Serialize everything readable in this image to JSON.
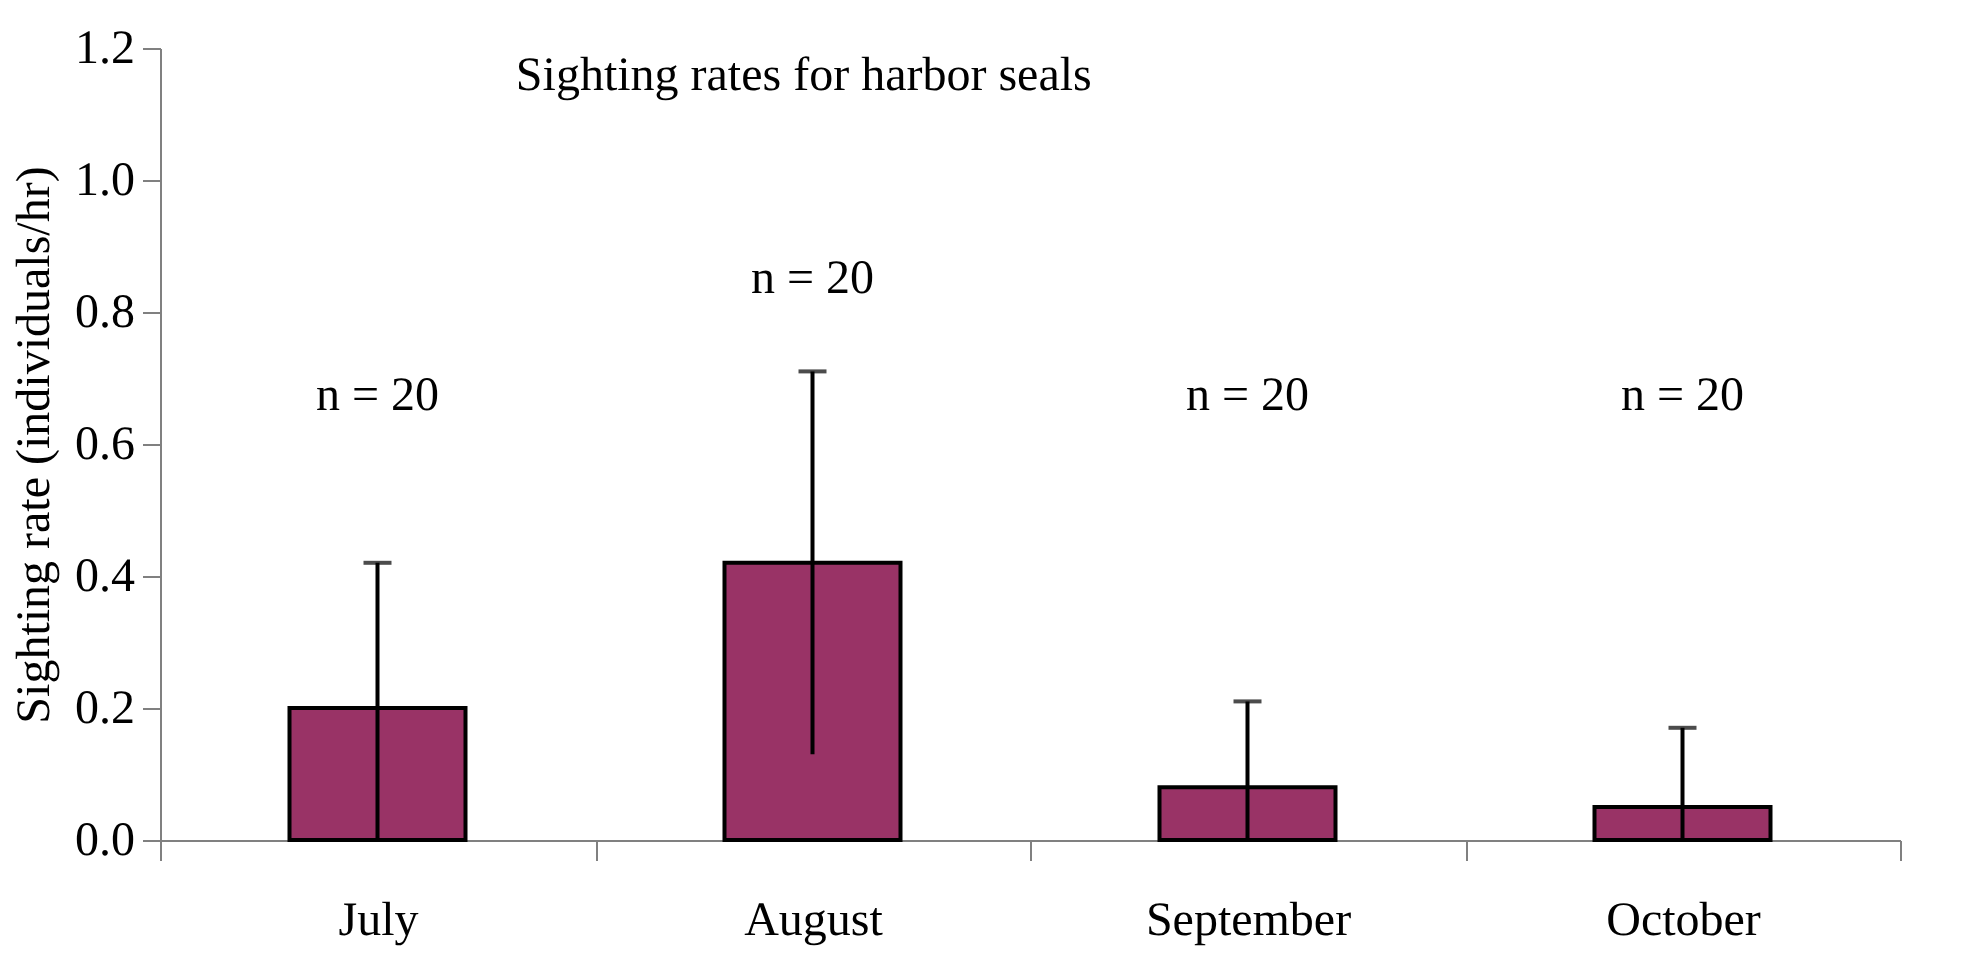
{
  "chart_data": {
    "type": "bar",
    "title": "Sighting rates for harbor seals",
    "ylabel": "Sighting rate (individuals/hr)",
    "categories": [
      "July",
      "August",
      "September",
      "October"
    ],
    "values": [
      0.2,
      0.42,
      0.08,
      0.05
    ],
    "color": "#993366",
    "errors": [
      [
        0,
        0.42
      ],
      [
        0.13,
        0.71
      ],
      [
        0,
        0.21
      ],
      [
        0,
        0.17
      ]
    ],
    "ylim": [
      0,
      1.2
    ],
    "yticks": [
      {
        "value": 0,
        "label": "0.0"
      },
      0.2,
      0.4,
      0.6,
      0.8,
      {
        "value": 1,
        "label": "1.0"
      },
      1.2
    ],
    "annotations": [
      "n = 20",
      "n = 20",
      "n = 20",
      "n = 20"
    ],
    "grid": false
  }
}
